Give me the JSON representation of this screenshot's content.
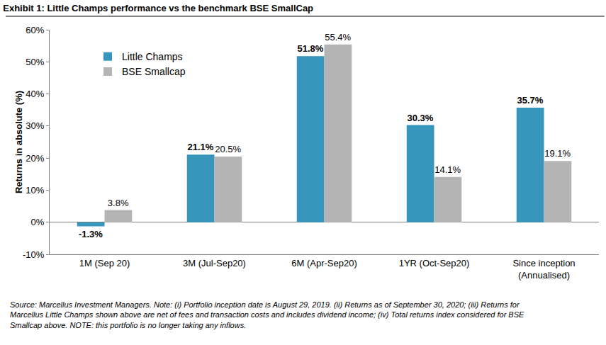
{
  "chart_data": {
    "type": "bar",
    "title": "Exhibit 1: Little Champs performance vs the benchmark BSE SmallCap",
    "y_label": "Returns in absolute (%)",
    "categories": [
      "1M (Sep 20)",
      "3M (Jul-Sep20)",
      "6M (Apr-Sep20)",
      "1YR (Oct-Sep20)",
      "Since inception (Annualised)"
    ],
    "series": [
      {
        "name": "Little Champs",
        "color": "#3896bd",
        "values": [
          -1.3,
          21.1,
          51.8,
          30.3,
          35.7
        ],
        "value_labels": [
          "-1.3%",
          "21.1%",
          "51.8%",
          "30.3%",
          "35.7%"
        ]
      },
      {
        "name": "BSE Smallcap",
        "color": "#b4b4b4",
        "values": [
          3.8,
          20.5,
          55.4,
          14.1,
          19.1
        ],
        "value_labels": [
          "3.8%",
          "20.5%",
          "55.4%",
          "14.1%",
          "19.1%"
        ]
      }
    ],
    "ylim": [
      -10,
      60
    ],
    "yticks": [
      {
        "value": -10,
        "label": "-10%"
      },
      {
        "value": 0,
        "label": "0%"
      },
      {
        "value": 10,
        "label": "10%"
      },
      {
        "value": 20,
        "label": "20%"
      },
      {
        "value": 30,
        "label": "30%"
      },
      {
        "value": 40,
        "label": "40%"
      },
      {
        "value": 50,
        "label": "50%"
      },
      {
        "value": 60,
        "label": "60%"
      }
    ],
    "grid": false,
    "legend": "top-left",
    "data_labels": true,
    "annotations": [
      "Source: Marcellus Investment Managers. Note: (i) Portfolio inception date is August 29, 2019. (ii) Returns as of September 30, 2020; (iii) Returns for Marcellus Little Champs shown above are net of fees and transaction costs and includes dividend income; (iv) Total returns index considered for BSE Smallcap above. NOTE: this portfolio is no longer taking any inflows."
    ]
  }
}
